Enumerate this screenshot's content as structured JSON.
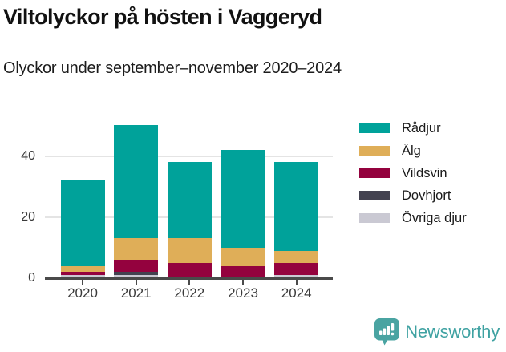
{
  "header": {
    "title": "Viltolyckor på hösten i Vaggeryd",
    "subtitle": "Olyckor under september–november 2020–2024"
  },
  "chart_data": {
    "type": "bar",
    "stacked": true,
    "title": "Viltolyckor på hösten i Vaggeryd",
    "subtitle": "Olyckor under september–november 2020–2024",
    "categories": [
      "2020",
      "2021",
      "2022",
      "2023",
      "2024"
    ],
    "series": [
      {
        "name": "Rådjur",
        "color": "#00A29A",
        "values": [
          28,
          37,
          25,
          32,
          29
        ]
      },
      {
        "name": "Älg",
        "color": "#DFAE58",
        "values": [
          2,
          7,
          8,
          6,
          4
        ]
      },
      {
        "name": "Vildsvin",
        "color": "#94023E",
        "values": [
          1,
          4,
          5,
          4,
          4
        ]
      },
      {
        "name": "Dovhjort",
        "color": "#434250",
        "values": [
          0,
          1,
          0,
          0,
          0
        ]
      },
      {
        "name": "Övriga djur",
        "color": "#CAC9D3",
        "values": [
          1,
          1,
          0,
          0,
          1
        ]
      }
    ],
    "stack_order_bottom_to_top": [
      "Övriga djur",
      "Dovhjort",
      "Vildsvin",
      "Älg",
      "Rådjur"
    ],
    "totals": [
      32,
      50,
      38,
      42,
      38
    ],
    "yticks": [
      0,
      20,
      40
    ],
    "ylim": [
      0,
      52
    ],
    "xlabel": "",
    "ylabel": "",
    "grid": "horizontal",
    "legend_position": "top-right"
  },
  "colors": {
    "axis": "#4a4a4a",
    "grid": "#e4e4e4",
    "tick_label": "#3a3a3a",
    "title_text": "#111111",
    "brand": "#3fa2a2"
  },
  "footer": {
    "brand": "Newsworthy"
  }
}
